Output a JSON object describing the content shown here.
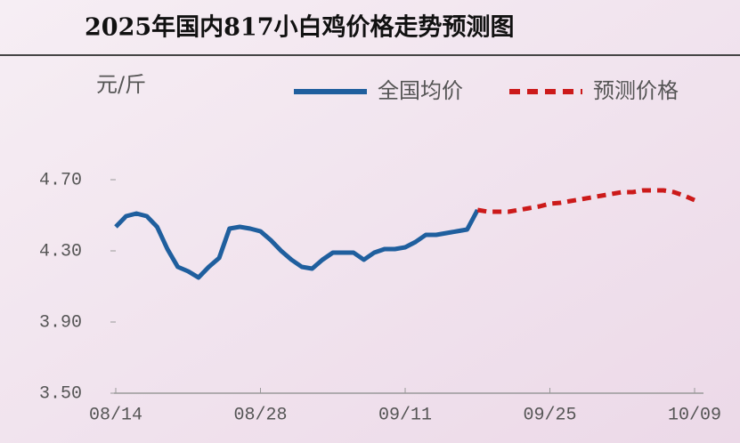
{
  "chart_data": {
    "type": "line",
    "title": "2025年国内817小白鸡价格走势预测图",
    "y_label": "元/斤",
    "categories": [
      "08/14",
      null,
      null,
      null,
      null,
      null,
      null,
      null,
      null,
      null,
      null,
      null,
      null,
      null,
      "08/28",
      null,
      null,
      null,
      null,
      null,
      null,
      null,
      null,
      null,
      null,
      null,
      null,
      null,
      "09/11",
      null,
      null,
      null,
      null,
      null,
      null,
      null,
      null,
      null,
      null,
      null,
      null,
      null,
      "09/25",
      null,
      null,
      null,
      null,
      null,
      null,
      null,
      null,
      null,
      null,
      null,
      null,
      null,
      "10/09"
    ],
    "series": [
      {
        "name": "全国均价",
        "color": "#1f5f9e",
        "style": "solid",
        "values": [
          4.435,
          4.495,
          4.51,
          4.495,
          4.435,
          4.31,
          4.21,
          4.185,
          4.15,
          4.21,
          4.26,
          4.425,
          4.435,
          4.425,
          4.41,
          4.36,
          4.3,
          4.25,
          4.21,
          4.2,
          4.25,
          4.29,
          4.29,
          4.29,
          4.25,
          4.29,
          4.31,
          4.31,
          4.32,
          4.35,
          4.39,
          4.39,
          4.4,
          4.41,
          4.42,
          4.53,
          null,
          null,
          null,
          null,
          null,
          null,
          null,
          null,
          null,
          null,
          null,
          null,
          null,
          null,
          null,
          null,
          null,
          null,
          null,
          null,
          null
        ]
      },
      {
        "name": "预测价格",
        "color": "#cc1a1a",
        "style": "dashed",
        "values": [
          null,
          null,
          null,
          null,
          null,
          null,
          null,
          null,
          null,
          null,
          null,
          null,
          null,
          null,
          null,
          null,
          null,
          null,
          null,
          null,
          null,
          null,
          null,
          null,
          null,
          null,
          null,
          null,
          null,
          null,
          null,
          null,
          null,
          null,
          null,
          4.53,
          4.52,
          4.52,
          4.52,
          4.53,
          4.54,
          4.55,
          4.565,
          4.57,
          4.58,
          4.59,
          4.6,
          4.61,
          4.62,
          4.63,
          4.63,
          4.64,
          4.64,
          4.64,
          4.63,
          4.61,
          4.585
        ]
      }
    ],
    "ylim": [
      3.5,
      5.0
    ],
    "yticks": [
      {
        "value": 3.5,
        "label": "3.50"
      },
      {
        "value": 3.9,
        "label": "3.90"
      },
      {
        "value": 4.3,
        "label": "4.30"
      },
      {
        "value": 4.7,
        "label": "4.70"
      }
    ],
    "grid": false
  }
}
